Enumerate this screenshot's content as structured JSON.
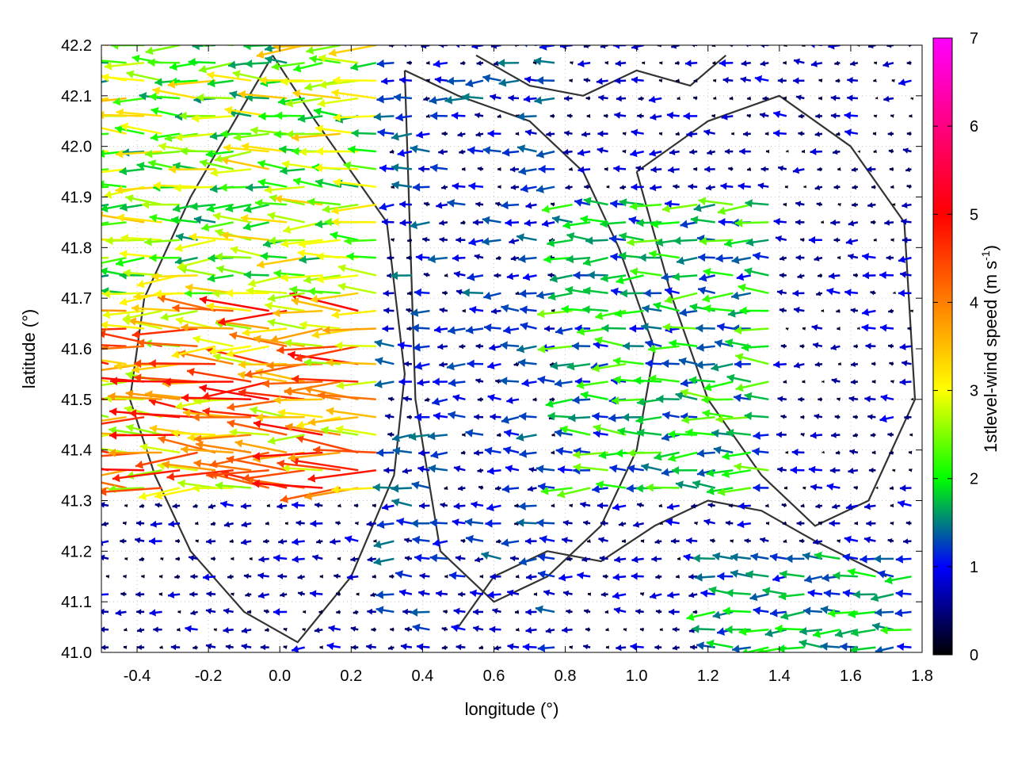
{
  "chart_data": {
    "type": "vector-field",
    "xlabel": "longitude (°)",
    "ylabel": "latitude (°)",
    "xlim": [
      -0.5,
      1.8
    ],
    "ylim": [
      41.0,
      42.2
    ],
    "xticks": [
      -0.4,
      -0.2,
      0.0,
      0.2,
      0.4,
      0.6,
      0.8,
      1.0,
      1.2,
      1.4,
      1.6,
      1.8
    ],
    "xtick_labels": [
      "-0.4",
      "-0.2",
      "0.0",
      "0.2",
      "0.4",
      "0.6",
      "0.8",
      "1.0",
      "1.2",
      "1.4",
      "1.6",
      "1.8"
    ],
    "yticks": [
      41.0,
      41.1,
      41.2,
      41.3,
      41.4,
      41.5,
      41.6,
      41.7,
      41.8,
      41.9,
      42.0,
      42.1,
      42.2
    ],
    "ytick_labels": [
      "41.0",
      "41.1",
      "41.2",
      "41.3",
      "41.4",
      "41.5",
      "41.6",
      "41.7",
      "41.8",
      "41.9",
      "42.0",
      "42.1",
      "42.2"
    ],
    "grid": true,
    "colorbar": {
      "label_prefix": "1stlevel-wind speed (m s",
      "label_sup": "-1",
      "label_suffix": ")",
      "range": [
        0,
        7
      ],
      "ticks": [
        0,
        1,
        2,
        3,
        4,
        5,
        6,
        7
      ],
      "tick_labels": [
        "0",
        "1",
        "2",
        "3",
        "4",
        "5",
        "6",
        "7"
      ],
      "colormap": [
        "#000000",
        "#0000ff",
        "#00ff00",
        "#ffff00",
        "#ff7f00",
        "#ff0000",
        "#ff00ff"
      ]
    },
    "wind_field": {
      "direction": "mostly westward",
      "regions": [
        {
          "lon": [
            -0.5,
            0.3
          ],
          "lat": [
            41.3,
            41.7
          ],
          "speed_range": [
            2.5,
            5.0
          ]
        },
        {
          "lon": [
            -0.5,
            0.3
          ],
          "lat": [
            41.7,
            42.2
          ],
          "speed_range": [
            1.5,
            3.5
          ]
        },
        {
          "lon": [
            0.3,
            0.8
          ],
          "lat": [
            41.0,
            42.2
          ],
          "speed_range": [
            0.2,
            1.5
          ]
        },
        {
          "lon": [
            0.8,
            1.4
          ],
          "lat": [
            41.3,
            41.9
          ],
          "speed_range": [
            1.0,
            2.5
          ]
        },
        {
          "lon": [
            1.2,
            1.8
          ],
          "lat": [
            41.0,
            41.2
          ],
          "speed_range": [
            1.0,
            2.2
          ]
        },
        {
          "lon": [
            1.4,
            1.8
          ],
          "lat": [
            41.2,
            42.2
          ],
          "speed_range": [
            0.0,
            1.0
          ]
        }
      ]
    },
    "contours": [
      {
        "name": "contour-west",
        "lon": [
          -0.02,
          0.1,
          0.3,
          0.35,
          0.32,
          0.2,
          0.05,
          -0.1,
          -0.25,
          -0.35,
          -0.42,
          -0.38,
          -0.25,
          -0.02
        ],
        "lat": [
          42.18,
          42.05,
          41.85,
          41.55,
          41.35,
          41.15,
          41.02,
          41.08,
          41.2,
          41.35,
          41.5,
          41.7,
          41.9,
          42.18
        ]
      },
      {
        "name": "contour-central",
        "lon": [
          0.35,
          0.5,
          0.7,
          0.85,
          0.95,
          1.05,
          1.0,
          0.9,
          0.75,
          0.6,
          0.45,
          0.38,
          0.35
        ],
        "lat": [
          42.15,
          42.1,
          42.05,
          41.95,
          41.8,
          41.6,
          41.4,
          41.25,
          41.15,
          41.1,
          41.2,
          41.5,
          42.15
        ]
      },
      {
        "name": "contour-east",
        "lon": [
          1.0,
          1.2,
          1.4,
          1.6,
          1.75,
          1.78,
          1.65,
          1.5,
          1.35,
          1.2,
          1.1,
          1.0
        ],
        "lat": [
          41.95,
          42.05,
          42.1,
          42.0,
          41.85,
          41.5,
          41.3,
          41.25,
          41.35,
          41.5,
          41.7,
          41.95
        ]
      },
      {
        "name": "contour-south",
        "lon": [
          0.5,
          0.6,
          0.75,
          0.9,
          1.05,
          1.2,
          1.35,
          1.5,
          1.7
        ],
        "lat": [
          41.05,
          41.15,
          41.2,
          41.18,
          41.25,
          41.3,
          41.28,
          41.22,
          41.15
        ]
      },
      {
        "name": "contour-north",
        "lon": [
          0.55,
          0.7,
          0.85,
          1.0,
          1.15,
          1.25
        ],
        "lat": [
          42.18,
          42.12,
          42.1,
          42.15,
          42.12,
          42.18
        ]
      }
    ]
  }
}
